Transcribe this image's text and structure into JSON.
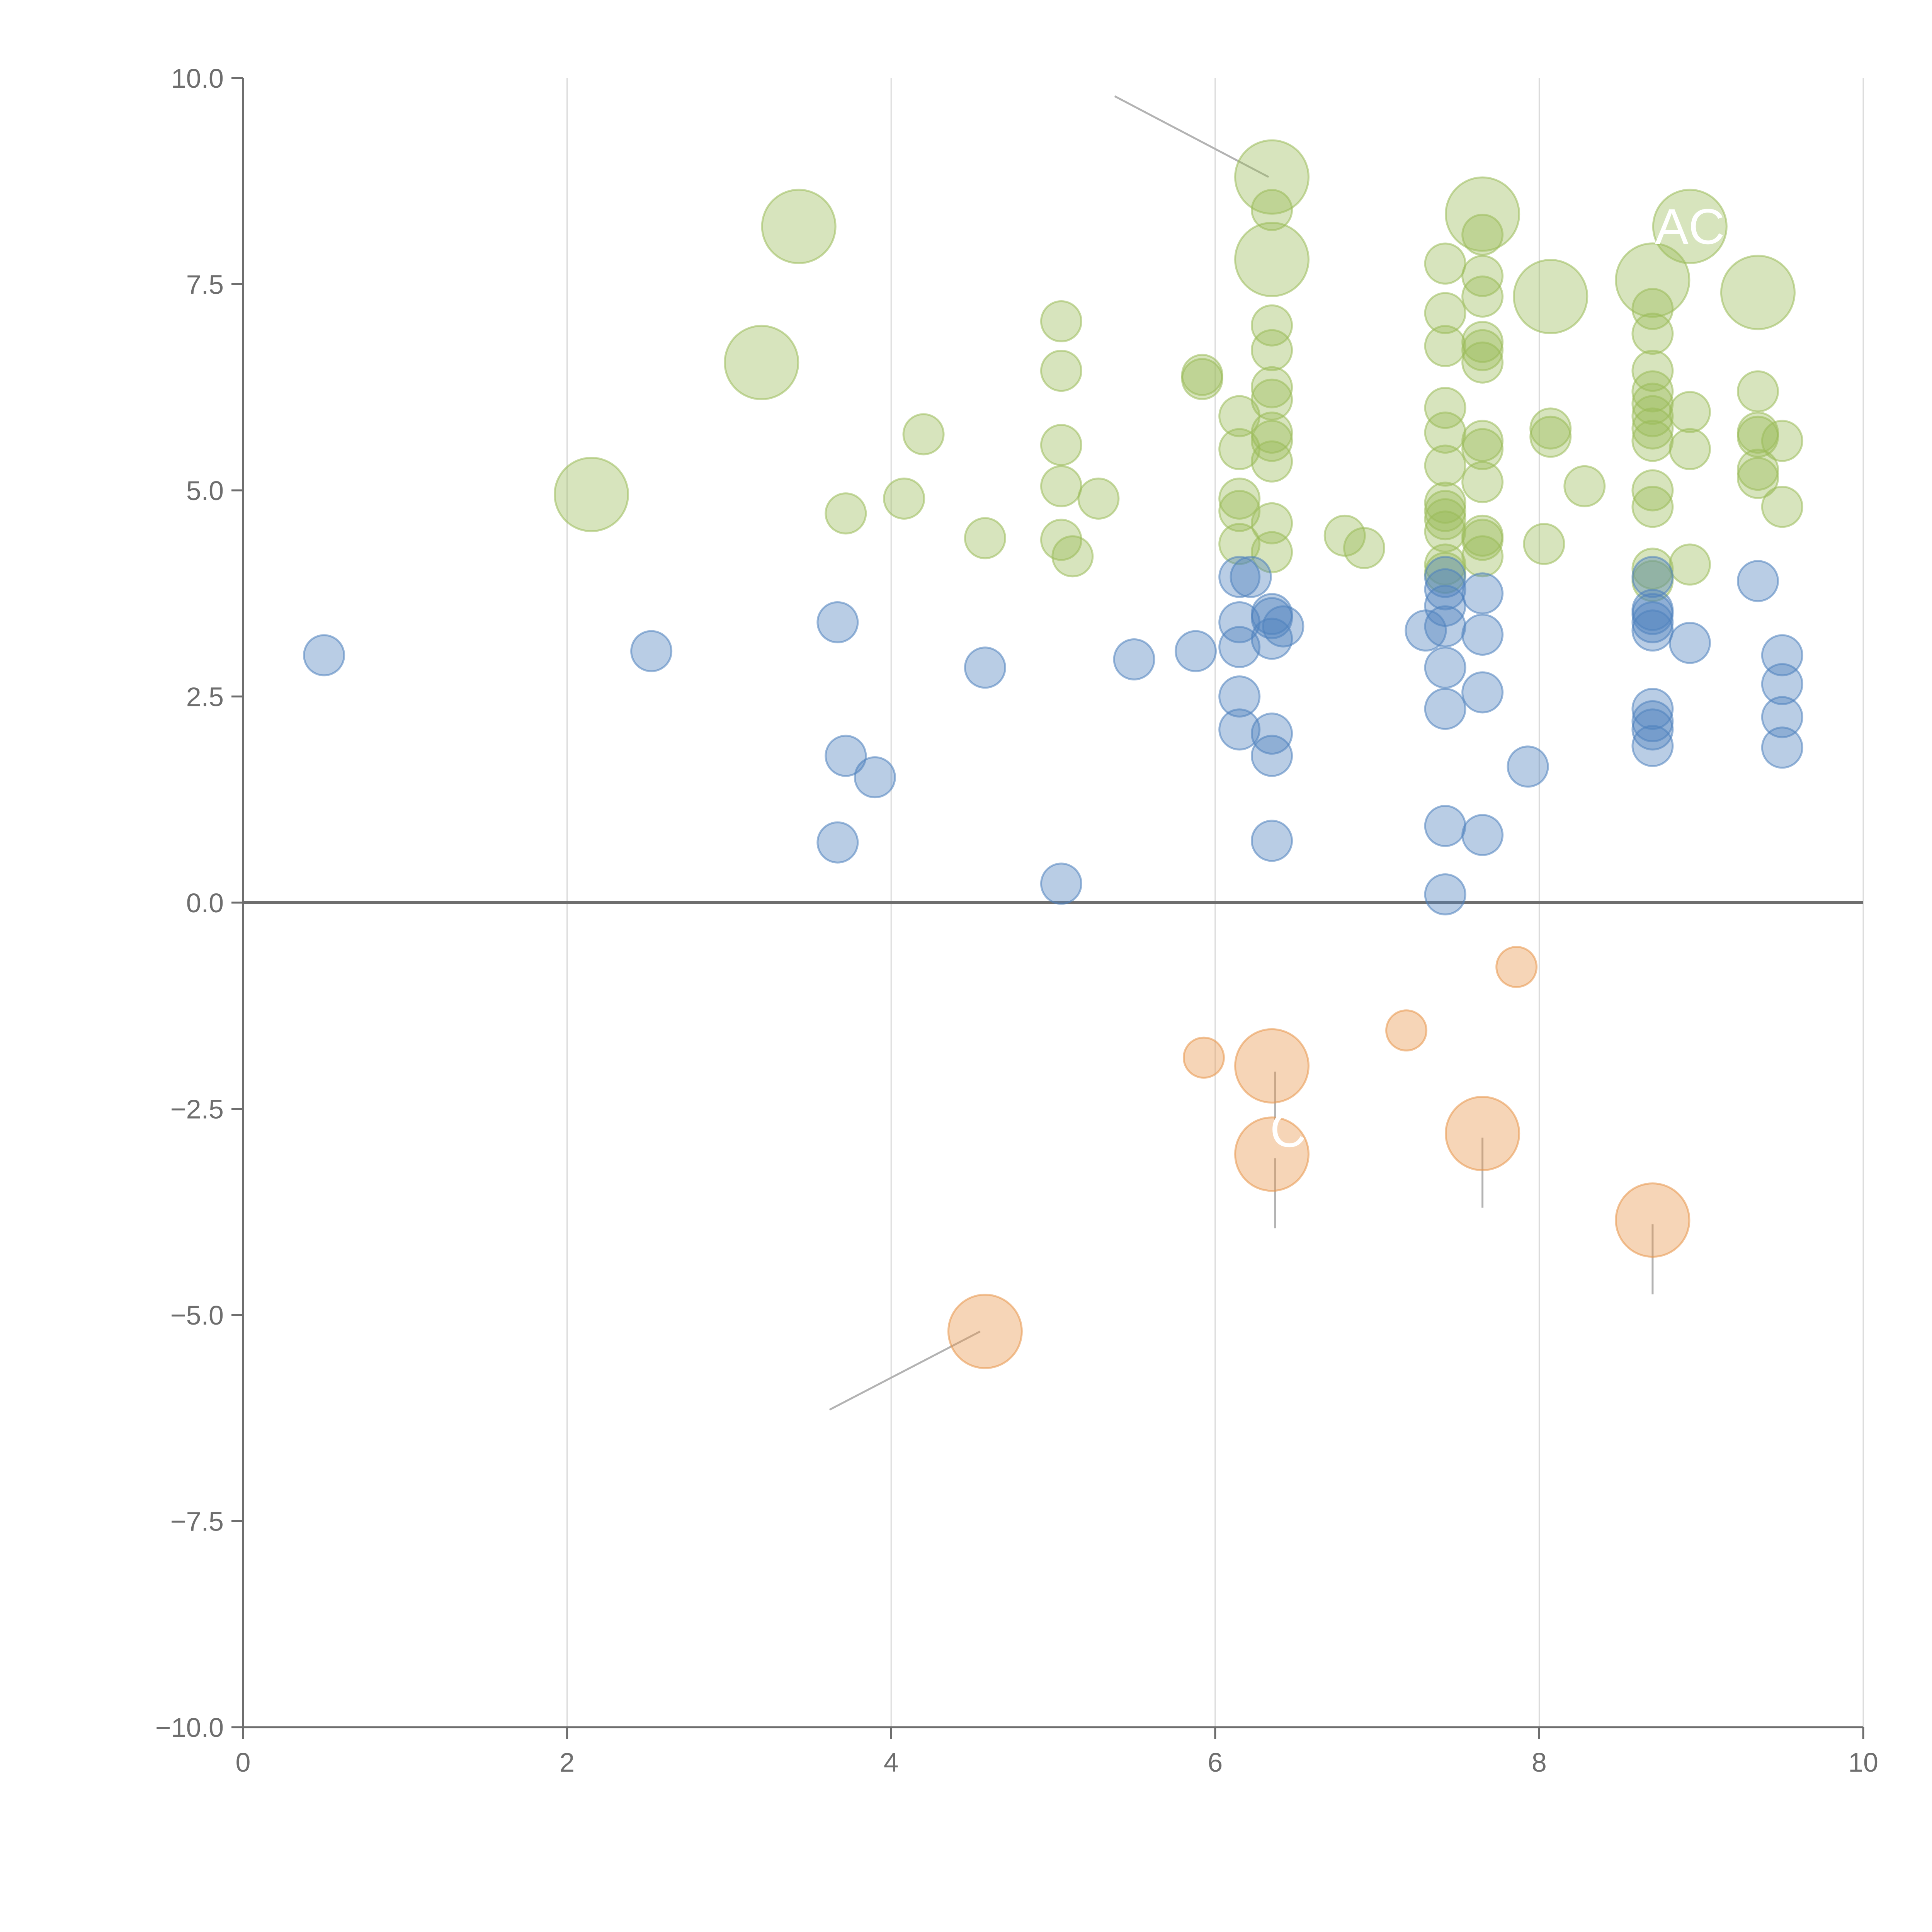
{
  "chart_data": {
    "type": "scatter",
    "title": "",
    "xlabel": "",
    "ylabel": "",
    "xlim": [
      0,
      10
    ],
    "ylim": [
      -10,
      10
    ],
    "x_ticks": [
      0,
      2,
      4,
      6,
      8,
      10
    ],
    "y_ticks": [
      -10,
      -7.5,
      -5,
      -2.5,
      0,
      2.5,
      5,
      7.5,
      10
    ],
    "x_tick_labels": [
      "0",
      "2",
      "4",
      "6",
      "8",
      "10"
    ],
    "y_tick_labels": [
      "−10.0",
      "−7.5",
      "−5.0",
      "−2.5",
      "0.0",
      "2.5",
      "5.0",
      "7.5",
      "10.0"
    ],
    "grid": "vertical",
    "zero_line": true,
    "colors": {
      "green": "#9bbb59",
      "blue": "#4f81bd",
      "orange": "#e8964b",
      "axis": "#6e6e6e",
      "grid": "#d9d9d9",
      "leader": "#b3b3b3"
    },
    "series": [
      {
        "name": "green",
        "color": "#9bbb59",
        "points": [
          [
            5.05,
            7.05
          ],
          [
            5.05,
            6.45
          ],
          [
            5.05,
            5.55
          ],
          [
            5.05,
            5.05
          ],
          [
            5.05,
            4.4
          ],
          [
            5.12,
            4.2
          ],
          [
            5.28,
            4.9
          ],
          [
            5.92,
            6.4
          ],
          [
            5.92,
            6.35
          ],
          [
            6.15,
            5.9
          ],
          [
            6.15,
            5.5
          ],
          [
            6.15,
            4.9
          ],
          [
            6.15,
            4.75
          ],
          [
            6.15,
            4.35
          ],
          [
            6.35,
            8.4
          ],
          [
            6.35,
            7.0
          ],
          [
            6.35,
            6.7
          ],
          [
            6.35,
            6.25
          ],
          [
            6.35,
            6.1
          ],
          [
            6.35,
            5.7
          ],
          [
            6.35,
            5.6
          ],
          [
            6.35,
            5.35
          ],
          [
            6.35,
            4.6
          ],
          [
            6.35,
            4.25
          ],
          [
            6.8,
            4.45
          ],
          [
            6.92,
            4.3
          ],
          [
            7.42,
            7.75
          ],
          [
            7.42,
            7.15
          ],
          [
            7.42,
            6.75
          ],
          [
            7.42,
            6.0
          ],
          [
            7.42,
            5.7
          ],
          [
            7.42,
            5.3
          ],
          [
            7.42,
            4.85
          ],
          [
            7.42,
            4.75
          ],
          [
            7.42,
            4.65
          ],
          [
            7.42,
            4.5
          ],
          [
            7.42,
            4.1
          ],
          [
            7.42,
            4.0
          ],
          [
            7.65,
            8.1
          ],
          [
            7.65,
            7.6
          ],
          [
            7.65,
            7.35
          ],
          [
            7.65,
            6.8
          ],
          [
            7.65,
            6.7
          ],
          [
            7.65,
            6.55
          ],
          [
            7.65,
            5.6
          ],
          [
            7.65,
            5.5
          ],
          [
            7.65,
            5.1
          ],
          [
            7.65,
            4.45
          ],
          [
            7.65,
            4.4
          ],
          [
            7.65,
            4.2
          ],
          [
            8.03,
            4.35
          ],
          [
            8.07,
            5.75
          ],
          [
            8.07,
            5.65
          ],
          [
            8.28,
            5.05
          ],
          [
            8.7,
            7.2
          ],
          [
            8.7,
            6.9
          ],
          [
            8.7,
            6.45
          ],
          [
            8.7,
            6.2
          ],
          [
            8.7,
            6.05
          ],
          [
            8.7,
            5.9
          ],
          [
            8.7,
            5.75
          ],
          [
            8.7,
            5.6
          ],
          [
            8.7,
            5.0
          ],
          [
            8.7,
            4.8
          ],
          [
            8.7,
            4.05
          ],
          [
            8.7,
            3.9
          ],
          [
            8.93,
            5.95
          ],
          [
            8.93,
            5.5
          ],
          [
            8.93,
            4.1
          ],
          [
            9.35,
            6.2
          ],
          [
            9.35,
            5.7
          ],
          [
            9.35,
            5.65
          ],
          [
            9.35,
            5.25
          ],
          [
            9.35,
            5.15
          ],
          [
            9.5,
            5.6
          ],
          [
            9.5,
            4.8
          ],
          [
            3.72,
            4.72
          ],
          [
            4.08,
            4.9
          ],
          [
            4.2,
            5.68
          ],
          [
            4.58,
            4.42
          ]
        ],
        "big_points": [
          [
            2.15,
            4.95
          ],
          [
            3.2,
            6.55
          ],
          [
            3.43,
            8.2
          ],
          [
            6.35,
            8.8
          ],
          [
            6.35,
            7.8
          ],
          [
            7.65,
            8.35
          ],
          [
            8.07,
            7.35
          ],
          [
            8.7,
            7.55
          ],
          [
            8.93,
            8.2
          ],
          [
            9.35,
            7.4
          ]
        ]
      },
      {
        "name": "blue",
        "color": "#4f81bd",
        "points": [
          [
            0.5,
            3.0
          ],
          [
            2.52,
            3.05
          ],
          [
            3.67,
            3.4
          ],
          [
            3.72,
            1.78
          ],
          [
            3.9,
            1.52
          ],
          [
            3.67,
            0.73
          ],
          [
            4.58,
            2.85
          ],
          [
            5.05,
            0.23
          ],
          [
            5.5,
            2.95
          ],
          [
            5.88,
            3.05
          ],
          [
            6.15,
            3.95
          ],
          [
            6.15,
            3.4
          ],
          [
            6.15,
            3.1
          ],
          [
            6.15,
            2.5
          ],
          [
            6.15,
            2.1
          ],
          [
            6.22,
            3.95
          ],
          [
            6.35,
            3.5
          ],
          [
            6.35,
            3.45
          ],
          [
            6.35,
            3.2
          ],
          [
            6.35,
            2.05
          ],
          [
            6.35,
            1.78
          ],
          [
            6.35,
            0.75
          ],
          [
            6.42,
            3.35
          ],
          [
            7.3,
            3.3
          ],
          [
            7.42,
            3.95
          ],
          [
            7.42,
            3.8
          ],
          [
            7.42,
            3.6
          ],
          [
            7.42,
            3.35
          ],
          [
            7.42,
            2.85
          ],
          [
            7.42,
            2.35
          ],
          [
            7.42,
            0.93
          ],
          [
            7.42,
            0.1
          ],
          [
            7.65,
            3.75
          ],
          [
            7.65,
            3.25
          ],
          [
            7.65,
            2.55
          ],
          [
            7.65,
            0.82
          ],
          [
            7.93,
            1.65
          ],
          [
            8.7,
            3.95
          ],
          [
            8.7,
            3.55
          ],
          [
            8.7,
            3.5
          ],
          [
            8.7,
            3.4
          ],
          [
            8.7,
            3.3
          ],
          [
            8.7,
            2.35
          ],
          [
            8.7,
            2.2
          ],
          [
            8.7,
            2.1
          ],
          [
            8.7,
            1.9
          ],
          [
            8.93,
            3.15
          ],
          [
            9.35,
            3.9
          ],
          [
            9.5,
            3.0
          ],
          [
            9.5,
            2.65
          ],
          [
            9.5,
            2.25
          ],
          [
            9.5,
            1.88
          ]
        ],
        "big_points": []
      },
      {
        "name": "orange",
        "color": "#e8964b",
        "points": [
          [
            5.93,
            -1.88
          ],
          [
            7.18,
            -1.55
          ],
          [
            7.86,
            -0.78
          ]
        ],
        "big_points": [
          [
            6.35,
            -1.98
          ],
          [
            6.35,
            -3.05
          ],
          [
            7.65,
            -2.8
          ],
          [
            8.7,
            -3.85
          ],
          [
            4.58,
            -5.2
          ]
        ]
      }
    ],
    "annotations": [
      {
        "text": "AC",
        "x": 8.93,
        "y": 8.2
      },
      {
        "text": "C",
        "x": 6.45,
        "y": -2.75
      }
    ]
  }
}
